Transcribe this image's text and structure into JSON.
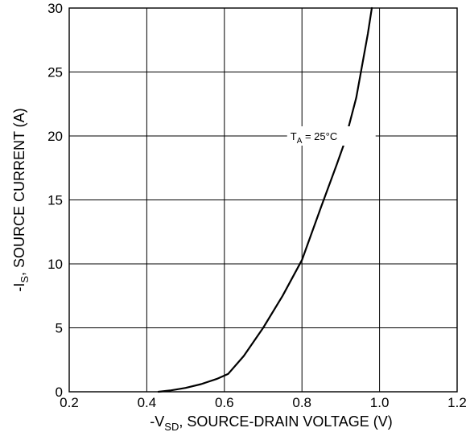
{
  "chart_data": {
    "type": "line",
    "xlabel": {
      "prefix": "-V",
      "sub": "SD",
      "rest": ", SOURCE-DRAIN VOLTAGE (V)"
    },
    "ylabel": {
      "prefix": "-I",
      "sub": "S",
      "rest": ", SOURCE CURRENT (A)"
    },
    "xlim": [
      0.2,
      1.2
    ],
    "ylim": [
      0,
      30
    ],
    "xticks": [
      "0.2",
      "0.4",
      "0.6",
      "0.8",
      "1.0",
      "1.2"
    ],
    "yticks": [
      "0",
      "5",
      "10",
      "15",
      "20",
      "25",
      "30"
    ],
    "grid": true,
    "annotation": {
      "prefix": "T",
      "sub": "A",
      "rest": " = 25°C"
    },
    "series": [
      {
        "x": [
          0.43,
          0.46,
          0.5,
          0.54,
          0.58,
          0.61,
          0.65,
          0.7,
          0.75,
          0.8,
          0.85,
          0.89,
          0.91,
          0.94,
          0.97,
          0.98
        ],
        "y": [
          0,
          0.1,
          0.3,
          0.6,
          1.0,
          1.4,
          2.8,
          5.0,
          7.5,
          10.3,
          14.5,
          17.8,
          19.5,
          23.0,
          28.0,
          30.0
        ]
      }
    ]
  }
}
